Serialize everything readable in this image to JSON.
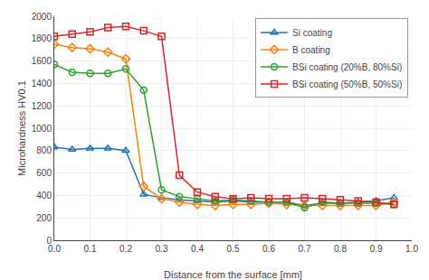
{
  "chart_data": {
    "type": "line",
    "xlabel": "Distance from the surface [mm]",
    "ylabel": "Microhardness HV0.1",
    "x": [
      0.0,
      0.05,
      0.1,
      0.15,
      0.2,
      0.25,
      0.3,
      0.35,
      0.4,
      0.45,
      0.5,
      0.55,
      0.6,
      0.65,
      0.7,
      0.75,
      0.8,
      0.85,
      0.9,
      0.95
    ],
    "series": [
      {
        "name": "Si coating",
        "marker": "triangle-up",
        "values": [
          830,
          810,
          820,
          820,
          800,
          410,
          380,
          360,
          350,
          340,
          350,
          340,
          340,
          340,
          310,
          330,
          330,
          340,
          350,
          380
        ]
      },
      {
        "name": "B coating",
        "marker": "diamond",
        "values": [
          1750,
          1720,
          1710,
          1680,
          1620,
          480,
          370,
          340,
          320,
          310,
          320,
          320,
          330,
          320,
          310,
          310,
          310,
          310,
          310,
          340
        ]
      },
      {
        "name": "BSi coating (20%B, 80%Si)",
        "marker": "circle",
        "values": [
          1570,
          1500,
          1490,
          1490,
          1530,
          1340,
          450,
          390,
          370,
          350,
          360,
          350,
          340,
          340,
          290,
          340,
          330,
          330,
          330,
          320
        ]
      },
      {
        "name": "BSi coating (50%B, 50%Si)",
        "marker": "square",
        "values": [
          1820,
          1840,
          1860,
          1900,
          1910,
          1870,
          1820,
          580,
          430,
          390,
          370,
          380,
          370,
          370,
          380,
          370,
          360,
          350,
          340,
          320
        ]
      }
    ],
    "xlim": [
      0.0,
      1.0
    ],
    "xticks": [
      {
        "value": 0.0,
        "label": "0.0"
      },
      0.1,
      0.2,
      0.3,
      0.4,
      0.5,
      0.6,
      0.7,
      0.8,
      0.9,
      {
        "value": 1.0,
        "label": "1.0"
      }
    ],
    "ylim": [
      0,
      2000
    ],
    "yticks": [
      0,
      200,
      400,
      600,
      800,
      1000,
      1200,
      1400,
      1600,
      1800,
      2000
    ],
    "grid": true,
    "legend": "upper right"
  }
}
